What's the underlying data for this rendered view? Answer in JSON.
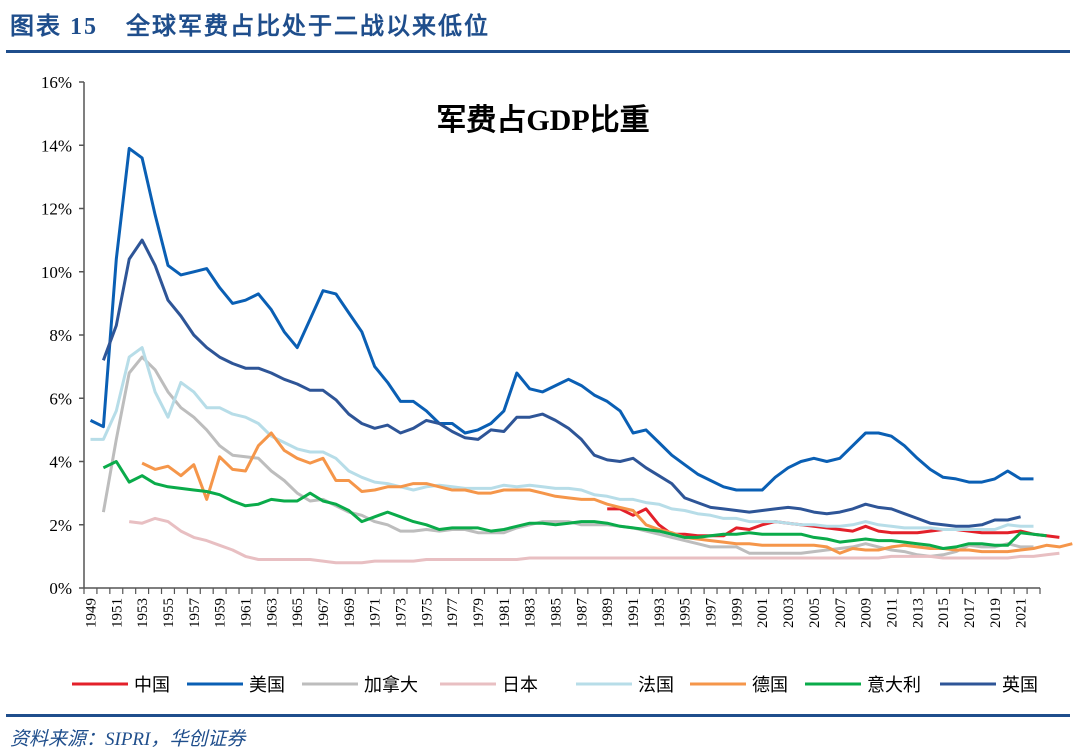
{
  "header": {
    "prefix": "图表",
    "number": "15",
    "title": "全球军费占比处于二战以来低位"
  },
  "source": "资料来源：SIPRI，华创证券",
  "chart_data": {
    "type": "line",
    "title": "军费占GDP比重",
    "xlabel": "",
    "ylabel": "",
    "ylim": [
      0,
      16
    ],
    "yticks": [
      "0%",
      "2%",
      "4%",
      "6%",
      "8%",
      "10%",
      "12%",
      "14%",
      "16%"
    ],
    "x_start": 1949,
    "x_end": 2022,
    "xtick_labels": [
      "1949",
      "1951",
      "1953",
      "1955",
      "1957",
      "1959",
      "1961",
      "1963",
      "1965",
      "1967",
      "1969",
      "1971",
      "1973",
      "1975",
      "1977",
      "1979",
      "1981",
      "1983",
      "1985",
      "1987",
      "1989",
      "1991",
      "1993",
      "1995",
      "1997",
      "1999",
      "2001",
      "2003",
      "2005",
      "2007",
      "2009",
      "2011",
      "2013",
      "2015",
      "2017",
      "2019",
      "2021"
    ],
    "grid": false,
    "legend_position": "bottom",
    "series": [
      {
        "name": "中国",
        "color": "#e3202a",
        "start": 1989,
        "values": [
          2.5,
          2.5,
          2.3,
          2.5,
          2.0,
          1.7,
          1.7,
          1.65,
          1.65,
          1.65,
          1.9,
          1.85,
          2.0,
          2.1,
          2.05,
          2.0,
          1.95,
          1.9,
          1.85,
          1.8,
          1.95,
          1.8,
          1.75,
          1.75,
          1.75,
          1.8,
          1.85,
          1.85,
          1.8,
          1.75,
          1.75,
          1.75,
          1.8,
          1.7,
          1.65,
          1.6
        ]
      },
      {
        "name": "美国",
        "color": "#0a5fb4",
        "start": 1949,
        "values": [
          5.3,
          5.1,
          10.4,
          13.9,
          13.6,
          11.8,
          10.2,
          9.9,
          10.0,
          10.1,
          9.5,
          9.0,
          9.1,
          9.3,
          8.8,
          8.1,
          7.6,
          8.5,
          9.4,
          9.3,
          8.7,
          8.1,
          7.0,
          6.5,
          5.9,
          5.9,
          5.6,
          5.2,
          5.2,
          4.9,
          5.0,
          5.2,
          5.6,
          6.8,
          6.3,
          6.2,
          6.4,
          6.6,
          6.4,
          6.1,
          5.9,
          5.6,
          4.9,
          5.0,
          4.6,
          4.2,
          3.9,
          3.6,
          3.4,
          3.2,
          3.1,
          3.1,
          3.1,
          3.5,
          3.8,
          4.0,
          4.1,
          4.0,
          4.1,
          4.5,
          4.9,
          4.9,
          4.8,
          4.5,
          4.1,
          3.75,
          3.5,
          3.45,
          3.35,
          3.35,
          3.45,
          3.7,
          3.45,
          3.45
        ]
      },
      {
        "name": "加拿大",
        "color": "#bdbdbd",
        "start": 1950,
        "values": [
          2.4,
          4.7,
          6.8,
          7.3,
          6.9,
          6.2,
          5.7,
          5.4,
          5.0,
          4.5,
          4.2,
          4.15,
          4.1,
          3.7,
          3.4,
          3.0,
          2.75,
          2.8,
          2.6,
          2.4,
          2.3,
          2.1,
          2.0,
          1.8,
          1.8,
          1.85,
          1.8,
          1.85,
          1.85,
          1.75,
          1.75,
          1.75,
          1.9,
          2.0,
          2.1,
          2.1,
          2.1,
          2.0,
          2.0,
          2.0,
          1.95,
          1.9,
          1.8,
          1.7,
          1.6,
          1.5,
          1.4,
          1.3,
          1.3,
          1.3,
          1.1,
          1.1,
          1.1,
          1.1,
          1.1,
          1.15,
          1.2,
          1.25,
          1.3,
          1.4,
          1.3,
          1.2,
          1.15,
          1.05,
          1.0,
          1.05,
          1.15,
          1.35,
          1.3,
          1.3,
          1.4,
          1.3,
          1.3
        ]
      },
      {
        "name": "日本",
        "color": "#e8bfc2",
        "start": 1952,
        "values": [
          2.1,
          2.05,
          2.2,
          2.1,
          1.8,
          1.6,
          1.5,
          1.35,
          1.2,
          1.0,
          0.9,
          0.9,
          0.9,
          0.9,
          0.9,
          0.85,
          0.8,
          0.8,
          0.8,
          0.85,
          0.85,
          0.85,
          0.85,
          0.9,
          0.9,
          0.9,
          0.9,
          0.9,
          0.9,
          0.9,
          0.9,
          0.95,
          0.95,
          0.95,
          0.95,
          0.95,
          0.95,
          0.95,
          0.95,
          0.95,
          0.95,
          0.95,
          0.95,
          0.95,
          0.95,
          0.95,
          0.95,
          0.95,
          0.95,
          0.95,
          0.95,
          0.95,
          0.95,
          0.95,
          0.95,
          0.95,
          0.95,
          0.95,
          0.95,
          1.0,
          1.0,
          1.0,
          1.0,
          0.95,
          0.95,
          0.95,
          0.95,
          0.95,
          0.95,
          1.0,
          1.0,
          1.05,
          1.1
        ]
      },
      {
        "name": "法国",
        "color": "#b7dde8",
        "start": 1949,
        "values": [
          4.7,
          4.7,
          5.6,
          7.3,
          7.6,
          6.2,
          5.4,
          6.5,
          6.2,
          5.7,
          5.7,
          5.5,
          5.4,
          5.2,
          4.8,
          4.6,
          4.4,
          4.3,
          4.3,
          4.1,
          3.7,
          3.5,
          3.35,
          3.3,
          3.2,
          3.1,
          3.2,
          3.25,
          3.2,
          3.15,
          3.15,
          3.15,
          3.25,
          3.2,
          3.25,
          3.2,
          3.15,
          3.15,
          3.1,
          2.95,
          2.9,
          2.8,
          2.8,
          2.7,
          2.65,
          2.5,
          2.45,
          2.35,
          2.3,
          2.2,
          2.2,
          2.1,
          2.1,
          2.1,
          2.05,
          2.0,
          2.0,
          1.95,
          1.95,
          2.0,
          2.1,
          2.0,
          1.95,
          1.9,
          1.9,
          1.9,
          1.85,
          1.85,
          1.85,
          1.85,
          1.85,
          2.0,
          1.95,
          1.95
        ]
      },
      {
        "name": "德国",
        "color": "#f5964a",
        "start": 1953,
        "values": [
          3.95,
          3.75,
          3.85,
          3.55,
          3.9,
          2.8,
          4.15,
          3.75,
          3.7,
          4.5,
          4.9,
          4.35,
          4.1,
          3.95,
          4.1,
          3.4,
          3.4,
          3.05,
          3.1,
          3.2,
          3.2,
          3.3,
          3.3,
          3.2,
          3.1,
          3.1,
          3.0,
          3.0,
          3.1,
          3.1,
          3.1,
          3.0,
          2.9,
          2.85,
          2.8,
          2.8,
          2.65,
          2.55,
          2.45,
          2.0,
          1.85,
          1.75,
          1.6,
          1.55,
          1.5,
          1.45,
          1.4,
          1.4,
          1.35,
          1.35,
          1.35,
          1.35,
          1.35,
          1.3,
          1.1,
          1.25,
          1.2,
          1.2,
          1.3,
          1.35,
          1.3,
          1.25,
          1.25,
          1.2,
          1.2,
          1.15,
          1.15,
          1.15,
          1.2,
          1.25,
          1.35,
          1.3,
          1.4
        ]
      },
      {
        "name": "意大利",
        "color": "#0aab4a",
        "start": 1950,
        "values": [
          3.8,
          4.0,
          3.35,
          3.55,
          3.3,
          3.2,
          3.15,
          3.1,
          3.05,
          2.95,
          2.75,
          2.6,
          2.65,
          2.8,
          2.75,
          2.75,
          3.0,
          2.75,
          2.65,
          2.45,
          2.1,
          2.25,
          2.4,
          2.25,
          2.1,
          2.0,
          1.85,
          1.9,
          1.9,
          1.9,
          1.8,
          1.85,
          1.95,
          2.05,
          2.05,
          2.0,
          2.05,
          2.1,
          2.1,
          2.05,
          1.95,
          1.9,
          1.85,
          1.8,
          1.7,
          1.6,
          1.6,
          1.65,
          1.7,
          1.7,
          1.75,
          1.7,
          1.7,
          1.7,
          1.7,
          1.6,
          1.55,
          1.45,
          1.5,
          1.55,
          1.5,
          1.5,
          1.45,
          1.4,
          1.35,
          1.25,
          1.3,
          1.4,
          1.4,
          1.35,
          1.35,
          1.75,
          1.7,
          1.65
        ]
      },
      {
        "name": "英国",
        "color": "#2e5597",
        "start": 1950,
        "values": [
          7.2,
          8.3,
          10.4,
          11.0,
          10.2,
          9.1,
          8.6,
          8.0,
          7.6,
          7.3,
          7.1,
          6.95,
          6.95,
          6.8,
          6.6,
          6.45,
          6.25,
          6.25,
          5.95,
          5.5,
          5.2,
          5.05,
          5.15,
          4.9,
          5.05,
          5.3,
          5.2,
          4.95,
          4.75,
          4.7,
          5.0,
          4.95,
          5.4,
          5.4,
          5.5,
          5.3,
          5.05,
          4.7,
          4.2,
          4.05,
          4.0,
          4.1,
          3.8,
          3.55,
          3.3,
          2.85,
          2.7,
          2.55,
          2.5,
          2.45,
          2.4,
          2.45,
          2.5,
          2.55,
          2.5,
          2.4,
          2.35,
          2.4,
          2.5,
          2.65,
          2.55,
          2.5,
          2.35,
          2.2,
          2.05,
          2.0,
          1.95,
          1.95,
          2.0,
          2.15,
          2.15,
          2.25
        ]
      }
    ]
  }
}
